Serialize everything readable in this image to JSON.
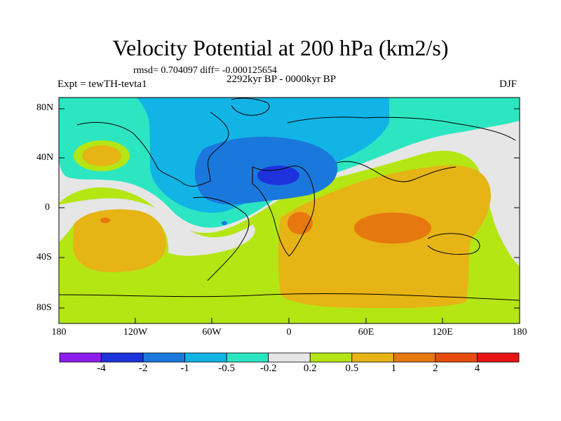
{
  "figure": {
    "title": "Velocity Potential at 200 hPa (km2/s)",
    "stats": "rmsd= 0.704097 diff= -0.000125654",
    "period": "2292kyr BP - 0000kyr BP",
    "experiment": "Expt = tewTH-tevta1",
    "season": "DJF"
  },
  "map": {
    "projection": "equirectangular",
    "lon_range": [
      -180,
      180
    ],
    "lat_range": [
      -90,
      90
    ],
    "lat_tick_labels": [
      "80N",
      "40N",
      "0",
      "40S",
      "80S"
    ],
    "lon_tick_labels": [
      "180",
      "120W",
      "60W",
      "0",
      "60E",
      "120E",
      "180"
    ],
    "coastlines": true,
    "field": "velocity potential anomaly",
    "units": "km2/s"
  },
  "colorbar": {
    "levels": [
      "-4",
      "-2",
      "-1",
      "-0.5",
      "-0.2",
      "0.2",
      "0.5",
      "1",
      "2",
      "4"
    ],
    "colors": [
      "#8c1eec",
      "#1e32dc",
      "#1a78dc",
      "#12b4e6",
      "#2ce6c2",
      "#e6e6e6",
      "#b4e614",
      "#e6b414",
      "#e6780f",
      "#e64b0f",
      "#e61414"
    ]
  }
}
